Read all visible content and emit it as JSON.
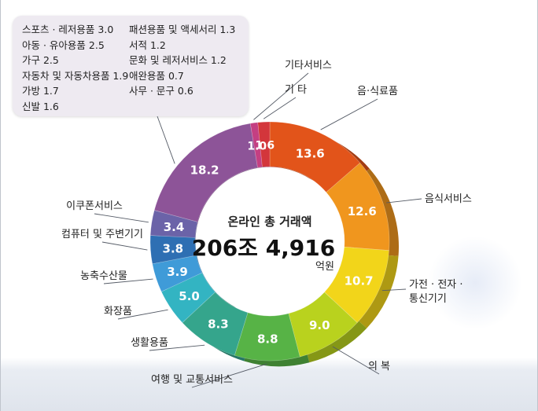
{
  "chart_data": {
    "type": "pie",
    "donut": true,
    "title": "",
    "center_label": "온라인 총 거래액",
    "center_value": "206조 4,916",
    "center_unit": "억원",
    "slices": [
      {
        "label": "음·식료품",
        "value": 13.6,
        "color": "#e2541a"
      },
      {
        "label": "음식서비스",
        "value": 12.6,
        "color": "#f0961e"
      },
      {
        "label": "가전·전자·통신기기",
        "value": 10.7,
        "color": "#f2d51a"
      },
      {
        "label": "의 복",
        "value": 9.0,
        "color": "#b9d21e"
      },
      {
        "label": "여행 및 교통서비스",
        "value": 8.8,
        "color": "#57b346"
      },
      {
        "label": "생활용품",
        "value": 8.3,
        "color": "#35a58c"
      },
      {
        "label": "화장품",
        "value": 5.0,
        "color": "#33b4c2"
      },
      {
        "label": "농축수산물",
        "value": 3.9,
        "color": "#3f9bd8"
      },
      {
        "label": "컴퓨터 및 주변기기",
        "value": 3.8,
        "color": "#2e6fb3"
      },
      {
        "label": "이쿠폰서비스",
        "value": 3.4,
        "color": "#6b63a8"
      },
      {
        "label": "",
        "value": 18.2,
        "color": "#8d5498"
      },
      {
        "label": "기타서비스",
        "value": 1.0,
        "color": "#c43f82"
      },
      {
        "label": "기 타",
        "value": 1.6,
        "color": "#d3363b"
      }
    ],
    "legend_entries": [
      "스포츠 · 레저용품 3.0",
      "아동 · 유아용품 2.5",
      "가구 2.5",
      "자동차 및 자동차용품 1.9",
      "가방 1.7",
      "신발 1.6",
      "패션용품 및 액세서리 1.3",
      "서적 1.2",
      "문화 및 레저서비스 1.2",
      "애완용품 0.7",
      "사무 · 문구 0.6"
    ]
  }
}
